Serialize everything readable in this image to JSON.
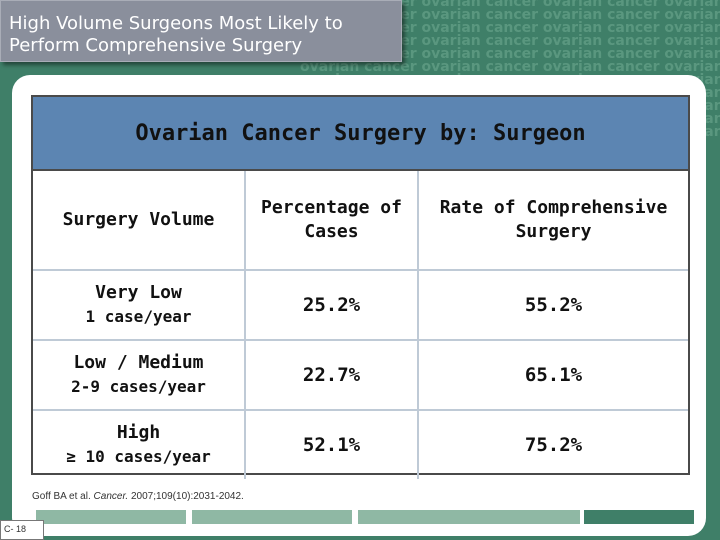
{
  "slide": {
    "title": "High Volume Surgeons Most Likely to Perform Comprehensive Surgery",
    "background_watermark": "ovarian cancer"
  },
  "table": {
    "caption": "Ovarian Cancer Surgery by: Surgeon",
    "headers": [
      "Surgery Volume",
      "Percentage of Cases",
      "Rate of Comprehensive Surgery"
    ],
    "rows": [
      {
        "volume": "Very Low",
        "volume_detail": "1 case/year",
        "percentage": "25.2%",
        "rate": "55.2%"
      },
      {
        "volume": "Low / Medium",
        "volume_detail": "2-9 cases/year",
        "percentage": "22.7%",
        "rate": "65.1%"
      },
      {
        "volume": "High",
        "volume_detail": "≥ 10 cases/year",
        "percentage": "52.1%",
        "rate": "75.2%"
      }
    ]
  },
  "citation": {
    "prefix": "Goff BA et al. ",
    "journal": "Cancer.",
    "details": " 2007;109(10):2031-2042."
  },
  "slide_number": "C- 18",
  "colors": {
    "background": "#3f7f68",
    "header_fill": "#5c85b2",
    "title_box": "#8a8f9c",
    "bar_colors": [
      "#8fb8a4",
      "#8fb8a4",
      "#8fb8a4",
      "#3f7f68"
    ]
  }
}
